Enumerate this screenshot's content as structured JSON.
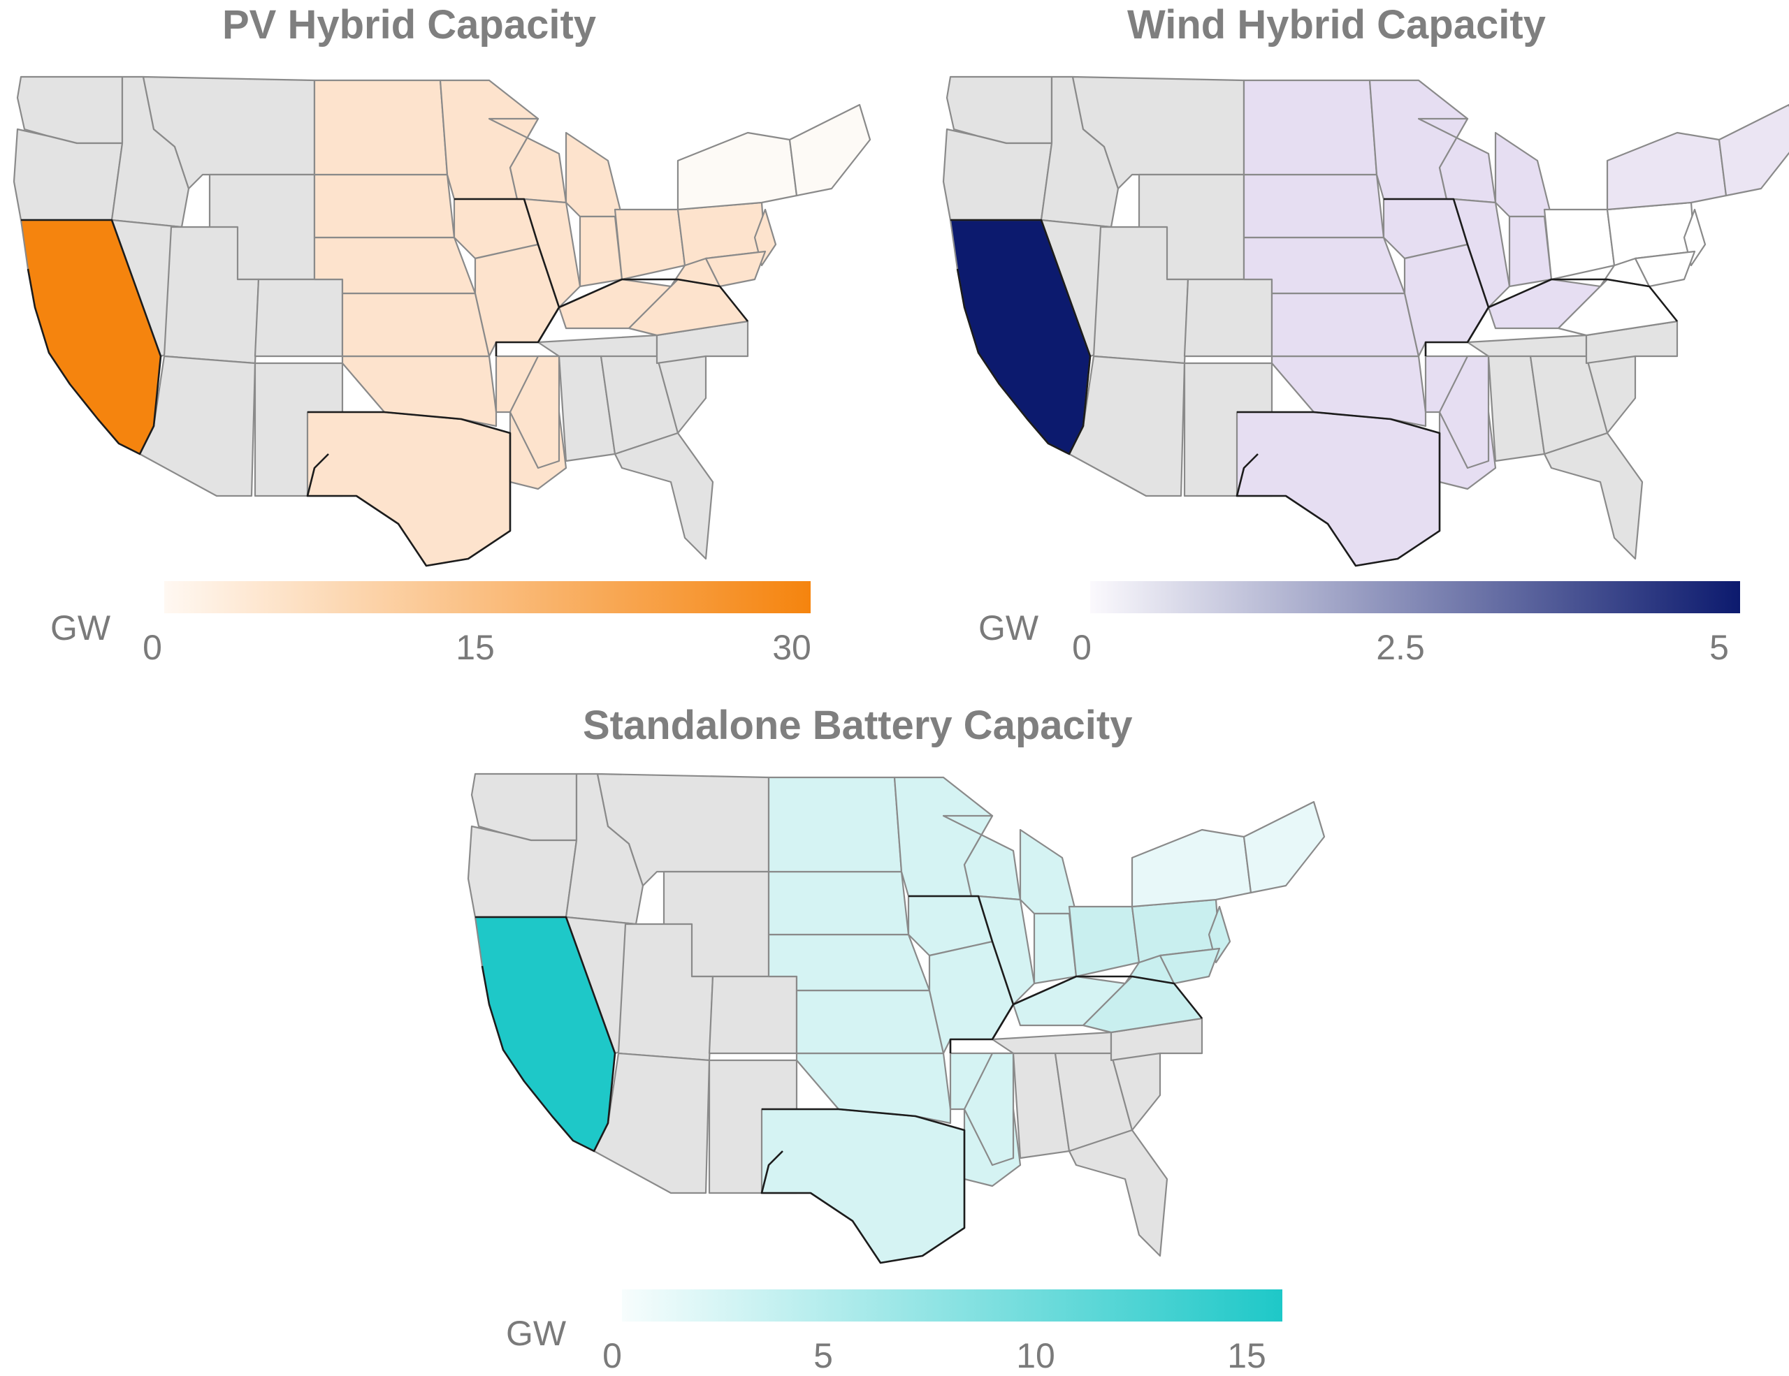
{
  "maps": [
    {
      "id": "pv",
      "title": "PV Hybrid Capacity",
      "legend": {
        "unit": "GW",
        "ticks": [
          "0",
          "15",
          "30"
        ],
        "min": 0,
        "max": 31,
        "color_low": "#fff8f2",
        "color_high": "#f5840e"
      },
      "colors": {
        "no_data": "#e3e3e3",
        "california": "#f5840e",
        "central": "#fde3cd",
        "east": "#fde3cd",
        "northeast": "#fdfaf6"
      }
    },
    {
      "id": "wind",
      "title": "Wind Hybrid Capacity",
      "legend": {
        "unit": "GW",
        "ticks": [
          "0",
          "2.5",
          "5"
        ],
        "min": 0,
        "max": 5.2,
        "color_low": "#fbf9fd",
        "color_high": "#0c1a6e"
      },
      "colors": {
        "no_data": "#e3e3e3",
        "california": "#0c1a6e",
        "central": "#e6def2",
        "east": "#ffffff",
        "northeast": "#ebe5f3"
      }
    },
    {
      "id": "battery",
      "title": "Standalone Battery Capacity",
      "legend": {
        "unit": "GW",
        "ticks": [
          "0",
          "5",
          "10",
          "15"
        ],
        "min": 0,
        "max": 16,
        "color_low": "#f7fdfd",
        "color_high": "#1ec8c8"
      },
      "colors": {
        "no_data": "#e3e3e3",
        "california": "#1ec8c8",
        "central": "#d5f3f3",
        "east": "#c9efef",
        "northeast": "#e8f8f9"
      }
    }
  ]
}
